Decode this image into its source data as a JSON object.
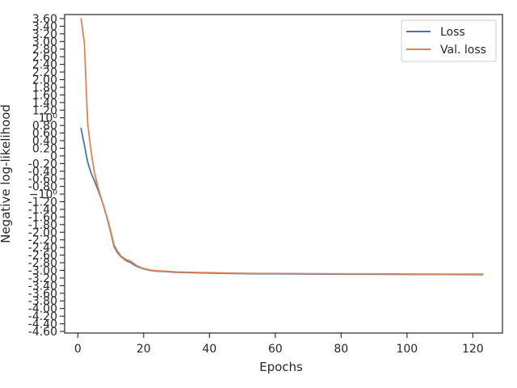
{
  "chart_data": {
    "type": "line",
    "xlabel": "Epochs",
    "ylabel": "Negative log-likelihood",
    "xlim": [
      -4,
      129
    ],
    "x_ticks": [
      0,
      20,
      40,
      60,
      80,
      100,
      120
    ],
    "y_ticks": [
      {
        "label": "3.60",
        "v": 3.6
      },
      {
        "label": "3.40",
        "v": 3.4
      },
      {
        "label": "3.20",
        "v": 3.2
      },
      {
        "label": "3.00",
        "v": 3.0
      },
      {
        "label": "2.80",
        "v": 2.8
      },
      {
        "label": "2.60",
        "v": 2.6
      },
      {
        "label": "2.40",
        "v": 2.4
      },
      {
        "label": "2.20",
        "v": 2.2
      },
      {
        "label": "2.00",
        "v": 2.0
      },
      {
        "label": "1.80",
        "v": 1.8
      },
      {
        "label": "1.60",
        "v": 1.6
      },
      {
        "label": "1.40",
        "v": 1.4
      },
      {
        "label": "1.20",
        "v": 1.2
      },
      {
        "label": "10⁰",
        "v": 1.0
      },
      {
        "label": "0.80",
        "v": 0.8
      },
      {
        "label": "0.60",
        "v": 0.6
      },
      {
        "label": "0.40",
        "v": 0.4
      },
      {
        "label": "0.20",
        "v": 0.2
      },
      {
        "label": "0",
        "v": 0
      },
      {
        "label": "-0.20",
        "v": -0.2
      },
      {
        "label": "-0.40",
        "v": -0.4
      },
      {
        "label": "-0.60",
        "v": -0.6
      },
      {
        "label": "-0.80",
        "v": -0.8
      },
      {
        "label": "−10⁰",
        "v": -1.0
      },
      {
        "label": "-1.20",
        "v": -1.2
      },
      {
        "label": "-1.40",
        "v": -1.4
      },
      {
        "label": "-1.60",
        "v": -1.6
      },
      {
        "label": "-1.80",
        "v": -1.8
      },
      {
        "label": "-2.00",
        "v": -2.0
      },
      {
        "label": "-2.20",
        "v": -2.2
      },
      {
        "label": "-2.40",
        "v": -2.4
      },
      {
        "label": "-2.60",
        "v": -2.6
      },
      {
        "label": "-2.80",
        "v": -2.8
      },
      {
        "label": "-3.00",
        "v": -3.0
      },
      {
        "label": "-3.20",
        "v": -3.2
      },
      {
        "label": "-3.40",
        "v": -3.4
      },
      {
        "label": "-3.60",
        "v": -3.6
      },
      {
        "label": "-3.80",
        "v": -3.8
      },
      {
        "label": "-4.00",
        "v": -4.0
      },
      {
        "label": "-4.20",
        "v": -4.2
      },
      {
        "label": "-4.40",
        "v": -4.4
      },
      {
        "label": "-4.60",
        "v": -4.6
      }
    ],
    "legend_position": "top-right",
    "grid": false,
    "series": [
      {
        "name": "Loss",
        "color": "#4c72b0",
        "x": [
          1,
          2,
          3,
          4,
          5,
          6,
          7,
          8,
          9,
          10,
          11,
          12,
          13,
          14,
          15,
          16,
          17,
          18,
          19,
          20,
          22,
          24,
          26,
          28,
          30,
          35,
          40,
          45,
          50,
          55,
          60,
          70,
          80,
          90,
          100,
          110,
          120,
          123
        ],
        "y": [
          0.72,
          0.28,
          -0.16,
          -0.44,
          -0.64,
          -0.86,
          -1.09,
          -1.36,
          -1.66,
          -2.0,
          -2.37,
          -2.53,
          -2.63,
          -2.7,
          -2.76,
          -2.79,
          -2.85,
          -2.9,
          -2.93,
          -2.96,
          -3.0,
          -3.02,
          -3.03,
          -3.04,
          -3.05,
          -3.06,
          -3.07,
          -3.08,
          -3.085,
          -3.09,
          -3.09,
          -3.095,
          -3.1,
          -3.1,
          -3.105,
          -3.105,
          -3.11,
          -3.11
        ]
      },
      {
        "name": "Val. loss",
        "color": "#dd8452",
        "x": [
          1,
          2,
          3,
          4,
          5,
          6,
          7,
          8,
          9,
          10,
          11,
          12,
          13,
          14,
          15,
          16,
          17,
          18,
          19,
          20,
          22,
          24,
          26,
          28,
          30,
          35,
          40,
          45,
          50,
          55,
          60,
          70,
          80,
          90,
          100,
          110,
          120,
          123
        ],
        "y": [
          3.6,
          2.96,
          0.85,
          0.14,
          -0.41,
          -0.77,
          -1.08,
          -1.35,
          -1.64,
          -1.97,
          -2.33,
          -2.49,
          -2.61,
          -2.68,
          -2.73,
          -2.76,
          -2.82,
          -2.88,
          -2.92,
          -2.95,
          -2.99,
          -3.01,
          -3.02,
          -3.03,
          -3.04,
          -3.05,
          -3.06,
          -3.07,
          -3.075,
          -3.08,
          -3.08,
          -3.085,
          -3.09,
          -3.09,
          -3.095,
          -3.1,
          -3.1,
          -3.1
        ]
      }
    ]
  }
}
